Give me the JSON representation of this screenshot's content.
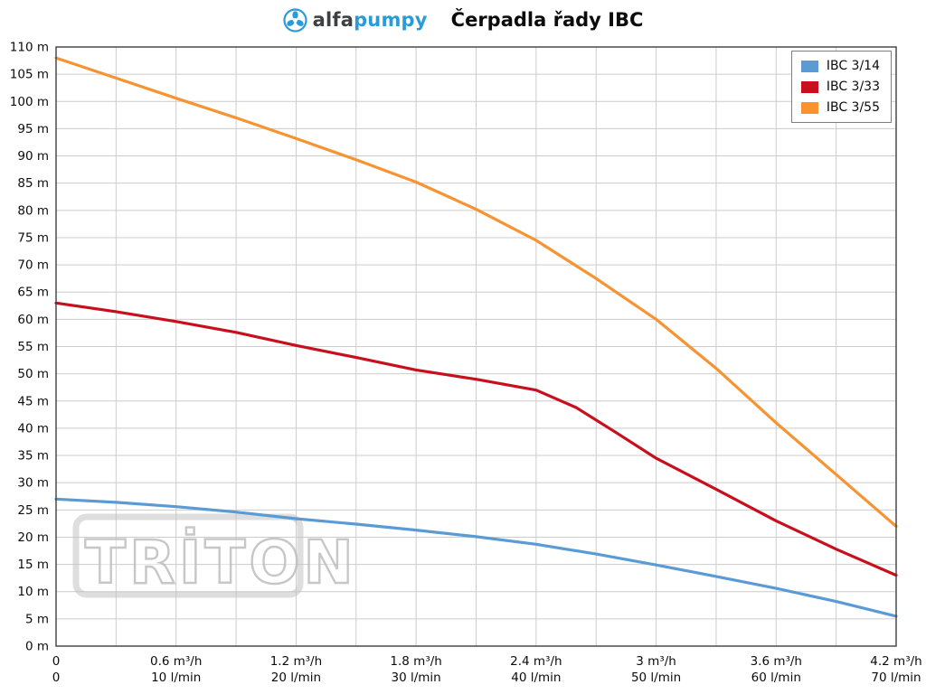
{
  "header": {
    "brand_alfa": "alfa",
    "brand_pumpy": "pumpy",
    "title": "Čerpadla řady IBC"
  },
  "watermark": "TRİTON",
  "chart_data": {
    "type": "line",
    "title": "Čerpadla řady IBC",
    "xlabel": "m³/h and l/min (flow)",
    "ylabel": "head (m)",
    "xlim": [
      0,
      4.2
    ],
    "ylim": [
      0,
      110
    ],
    "grid": true,
    "grid_color": "#cccccc",
    "border_color": "#3f3f3f",
    "x_grid_step": 0.3,
    "y_grid_step": 5,
    "legend_position": "top-right",
    "y_ticks": [
      "0 m",
      "5 m",
      "10 m",
      "15 m",
      "20 m",
      "25 m",
      "30 m",
      "35 m",
      "40 m",
      "45 m",
      "50 m",
      "55 m",
      "60 m",
      "65 m",
      "70 m",
      "75 m",
      "80 m",
      "85 m",
      "90 m",
      "95 m",
      "100 m",
      "105 m",
      "110 m"
    ],
    "x_ticks": [
      {
        "x": 0,
        "line1": "0",
        "line2": "0"
      },
      {
        "x": 0.6,
        "line1": "0.6 m³/h",
        "line2": "10 l/min"
      },
      {
        "x": 1.2,
        "line1": "1.2 m³/h",
        "line2": "20 l/min"
      },
      {
        "x": 1.8,
        "line1": "1.8 m³/h",
        "line2": "30 l/min"
      },
      {
        "x": 2.4,
        "line1": "2.4 m³/h",
        "line2": "40 l/min"
      },
      {
        "x": 3,
        "line1": "3 m³/h",
        "line2": "50 l/min"
      },
      {
        "x": 3.6,
        "line1": "3.6 m³/h",
        "line2": "60 l/min"
      },
      {
        "x": 4.2,
        "line1": "4.2 m³/h",
        "line2": "70 l/min"
      }
    ],
    "series": [
      {
        "name": "IBC 3/14",
        "color": "#5b9bd5",
        "points": [
          [
            0,
            27
          ],
          [
            0.3,
            26.4
          ],
          [
            0.6,
            25.6
          ],
          [
            0.9,
            24.6
          ],
          [
            1.2,
            23.4
          ],
          [
            1.5,
            22.4
          ],
          [
            1.8,
            21.3
          ],
          [
            2.1,
            20.1
          ],
          [
            2.4,
            18.7
          ],
          [
            2.7,
            16.9
          ],
          [
            3,
            14.9
          ],
          [
            3.3,
            12.8
          ],
          [
            3.6,
            10.6
          ],
          [
            3.9,
            8.2
          ],
          [
            4.2,
            5.5
          ]
        ]
      },
      {
        "name": "IBC 3/33",
        "color": "#c80f1e",
        "points": [
          [
            0,
            63
          ],
          [
            0.3,
            61.4
          ],
          [
            0.6,
            59.6
          ],
          [
            0.9,
            57.6
          ],
          [
            1.2,
            55.2
          ],
          [
            1.5,
            53
          ],
          [
            1.8,
            50.7
          ],
          [
            2.1,
            49
          ],
          [
            2.4,
            47
          ],
          [
            2.6,
            43.8
          ],
          [
            2.8,
            39.2
          ],
          [
            3,
            34.5
          ],
          [
            3.3,
            28.8
          ],
          [
            3.6,
            23
          ],
          [
            3.9,
            17.8
          ],
          [
            4.2,
            13
          ]
        ]
      },
      {
        "name": "IBC 3/55",
        "color": "#f79331",
        "points": [
          [
            0,
            108
          ],
          [
            0.3,
            104.3
          ],
          [
            0.6,
            100.6
          ],
          [
            0.9,
            97
          ],
          [
            1.2,
            93.2
          ],
          [
            1.5,
            89.3
          ],
          [
            1.8,
            85.2
          ],
          [
            2.1,
            80.2
          ],
          [
            2.4,
            74.5
          ],
          [
            2.7,
            67.5
          ],
          [
            3,
            60
          ],
          [
            3.3,
            51
          ],
          [
            3.6,
            41
          ],
          [
            3.9,
            31.5
          ],
          [
            4.2,
            22
          ]
        ]
      }
    ]
  }
}
